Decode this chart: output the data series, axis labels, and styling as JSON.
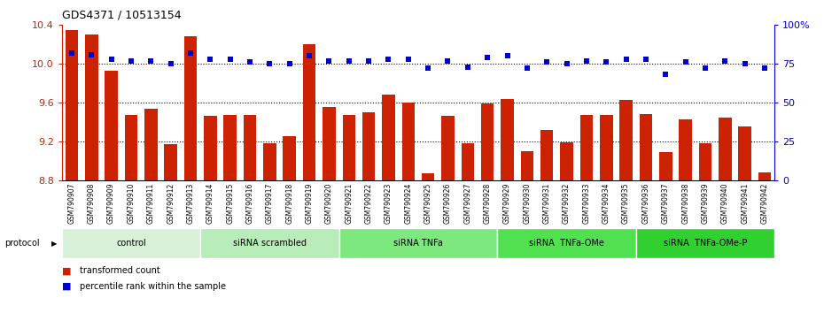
{
  "title": "GDS4371 / 10513154",
  "categories": [
    "GSM790907",
    "GSM790908",
    "GSM790909",
    "GSM790910",
    "GSM790911",
    "GSM790912",
    "GSM790913",
    "GSM790914",
    "GSM790915",
    "GSM790916",
    "GSM790917",
    "GSM790918",
    "GSM790919",
    "GSM790920",
    "GSM790921",
    "GSM790922",
    "GSM790923",
    "GSM790924",
    "GSM790925",
    "GSM790926",
    "GSM790927",
    "GSM790928",
    "GSM790929",
    "GSM790930",
    "GSM790931",
    "GSM790932",
    "GSM790933",
    "GSM790934",
    "GSM790935",
    "GSM790936",
    "GSM790937",
    "GSM790938",
    "GSM790939",
    "GSM790940",
    "GSM790941",
    "GSM790942"
  ],
  "bar_values": [
    10.35,
    10.3,
    9.93,
    9.47,
    9.54,
    9.17,
    10.28,
    9.46,
    9.47,
    9.47,
    9.18,
    9.25,
    10.2,
    9.55,
    9.47,
    9.5,
    9.68,
    9.6,
    8.87,
    9.46,
    9.18,
    9.59,
    9.64,
    9.1,
    9.32,
    9.19,
    9.47,
    9.47,
    9.63,
    9.48,
    9.09,
    9.43,
    9.18,
    9.44,
    9.35,
    8.88
  ],
  "percentile_values": [
    82,
    81,
    78,
    77,
    77,
    75,
    82,
    78,
    78,
    76,
    75,
    75,
    80,
    77,
    77,
    77,
    78,
    78,
    72,
    77,
    73,
    79,
    80,
    72,
    76,
    75,
    77,
    76,
    78,
    78,
    68,
    76,
    72,
    77,
    75,
    72
  ],
  "groups": [
    {
      "label": "control",
      "start": 0,
      "end": 7,
      "color": "#d8f0d8"
    },
    {
      "label": "siRNA scrambled",
      "start": 7,
      "end": 14,
      "color": "#b8ecb8"
    },
    {
      "label": "siRNA TNFa",
      "start": 14,
      "end": 22,
      "color": "#7de87d"
    },
    {
      "label": "siRNA  TNFa-OMe",
      "start": 22,
      "end": 29,
      "color": "#50e050"
    },
    {
      "label": "siRNA  TNFa-OMe-P",
      "start": 29,
      "end": 36,
      "color": "#30d030"
    }
  ],
  "bar_color": "#cc2200",
  "percentile_color": "#0000cc",
  "ylim_left": [
    8.8,
    10.4
  ],
  "ylim_right": [
    0,
    100
  ],
  "yticks_left": [
    8.8,
    9.2,
    9.6,
    10.0,
    10.4
  ],
  "yticks_right": [
    0,
    25,
    50,
    75,
    100
  ],
  "ytick_labels_right": [
    "0",
    "25",
    "50",
    "75",
    "100%"
  ]
}
